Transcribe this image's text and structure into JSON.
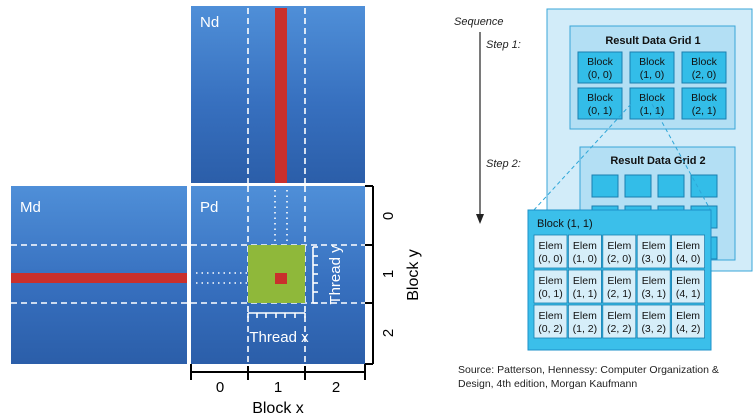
{
  "left_diagram": {
    "matrices": {
      "nd": "Nd",
      "md": "Md",
      "pd": "Pd"
    },
    "thread_x_label": "Thread x",
    "thread_y_label": "Thread y",
    "block_x_label": "Block x",
    "block_y_label": "Block y",
    "block_x_ticks": [
      "0",
      "1",
      "2"
    ],
    "block_y_ticks": [
      "0",
      "1",
      "2"
    ]
  },
  "right_diagram": {
    "sequence_label": "Sequence",
    "step1_label": "Step 1:",
    "step2_label": "Step 2:",
    "grid1_title": "Result Data Grid 1",
    "grid2_title": "Result Data Grid 2",
    "grid1_blocks": [
      [
        "Block",
        "(0, 0)"
      ],
      [
        "Block",
        "(1, 0)"
      ],
      [
        "Block",
        "(2, 0)"
      ],
      [
        "Block",
        "(0, 1)"
      ],
      [
        "Block",
        "(1, 1)"
      ],
      [
        "Block",
        "(2, 1)"
      ]
    ],
    "detail_title": "Block (1, 1)",
    "elems": [
      [
        "(0, 0)",
        "(1, 0)",
        "(2, 0)",
        "(3, 0)",
        "(4, 0)"
      ],
      [
        "(0, 1)",
        "(1, 1)",
        "(2, 1)",
        "(3, 1)",
        "(4, 1)"
      ],
      [
        "(0, 2)",
        "(1, 2)",
        "(2, 2)",
        "(3, 2)",
        "(4, 2)"
      ]
    ],
    "elem_word": "Elem"
  },
  "source_text": "Source: Patterson, Hennessy: Computer Organization & Design, 4th edition, Morgan Kaufmann",
  "colors": {
    "matrix_blue": "#3a74c2",
    "row_red": "#c9302c",
    "tile_green": "#8fb83a",
    "grid_light": "#cfeaf8",
    "block_cyan": "#33bde8",
    "elem_bg": "#d6eef9"
  }
}
